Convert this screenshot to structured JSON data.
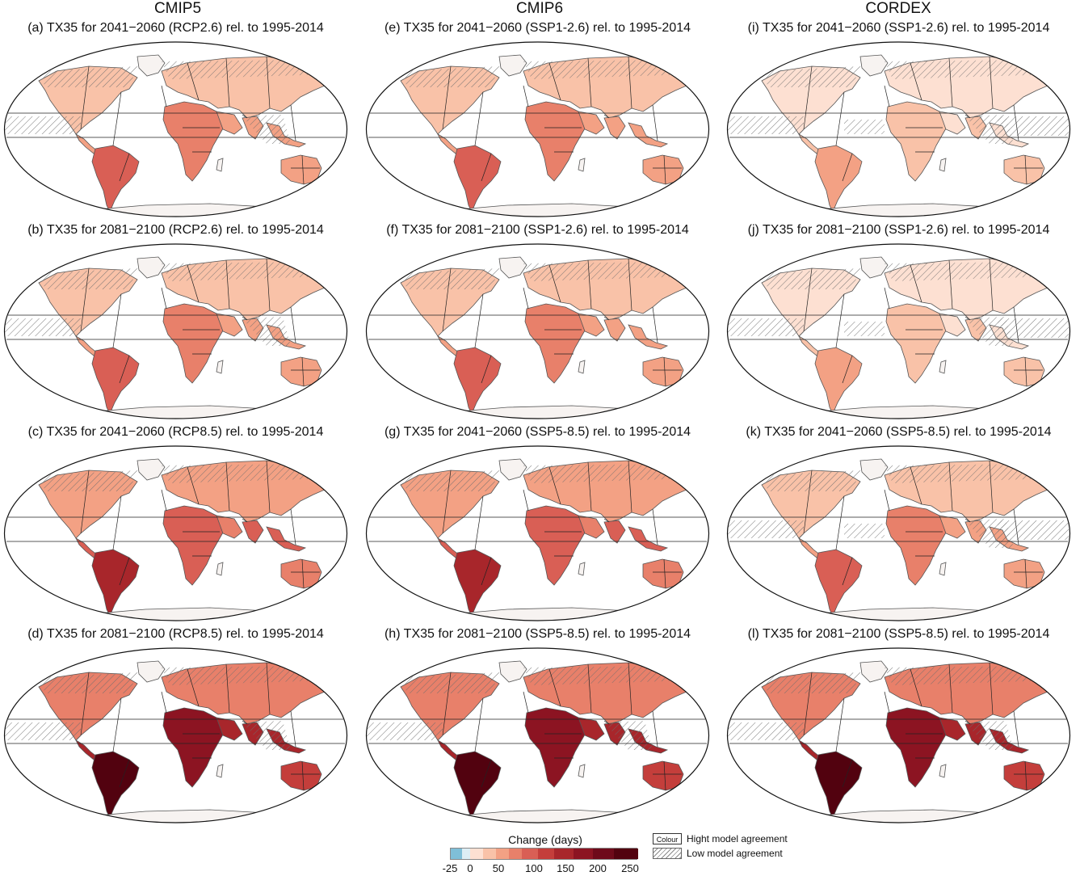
{
  "column_headers": [
    "CMIP5",
    "CMIP6",
    "CORDEX"
  ],
  "panels": [
    {
      "title": "(a) TX35 for 2041−2060 (RCP2.6) rel. to 1995-2014",
      "intensity": 1,
      "hatch": 2
    },
    {
      "title": "(b) TX35 for 2081−2100 (RCP2.6) rel. to 1995-2014",
      "intensity": 1,
      "hatch": 2
    },
    {
      "title": "(c) TX35 for 2041−2060 (RCP8.5) rel. to 1995-2014",
      "intensity": 2,
      "hatch": 1
    },
    {
      "title": "(d) TX35 for 2081−2100 (RCP8.5) rel. to 1995-2014",
      "intensity": 3,
      "hatch": 2
    },
    {
      "title": "(e) TX35 for 2041−2060 (SSP1-2.6) rel. to 1995-2014",
      "intensity": 1,
      "hatch": 1
    },
    {
      "title": "(f) TX35 for 2081−2100 (SSP1-2.6) rel. to 1995-2014",
      "intensity": 1,
      "hatch": 1
    },
    {
      "title": "(g) TX35 for 2041−2060 (SSP5-8.5) rel. to 1995-2014",
      "intensity": 2,
      "hatch": 1
    },
    {
      "title": "(h) TX35 for 2081−2100 (SSP5-8.5) rel. to 1995-2014",
      "intensity": 3,
      "hatch": 2
    },
    {
      "title": "(i) TX35 for 2041−2060 (SSP1-2.6) rel. to 1995-2014",
      "intensity": 0,
      "hatch": 3
    },
    {
      "title": "(j) TX35 for 2081−2100 (SSP1-2.6) rel. to 1995-2014",
      "intensity": 0,
      "hatch": 3
    },
    {
      "title": "(k) TX35 for 2041−2060 (SSP5-8.5) rel. to 1995-2014",
      "intensity": 1,
      "hatch": 3
    },
    {
      "title": "(l) TX35 for 2081−2100 (SSP5-8.5) rel. to 1995-2014",
      "intensity": 3,
      "hatch": 2
    }
  ],
  "legend": {
    "title": "Change (days)",
    "ticks": [
      "-25",
      "0",
      "50",
      "100",
      "150",
      "200",
      "250"
    ],
    "colors": [
      "#7fbfd8",
      "#ddeef5",
      "#fde0d2",
      "#f9c2a8",
      "#f3a184",
      "#e8806a",
      "#d95f55",
      "#c43e3b",
      "#a8262b",
      "#8c1422",
      "#6e0a1a",
      "#52020f"
    ],
    "colour_key_label": "Colour",
    "high_agreement": "Hight model agreement",
    "low_agreement": "Low model agreement"
  },
  "palette": {
    "land": "#f7f3f1",
    "outline": "#555555",
    "region_line": "#222222",
    "hatch": "#6d6d6d"
  }
}
